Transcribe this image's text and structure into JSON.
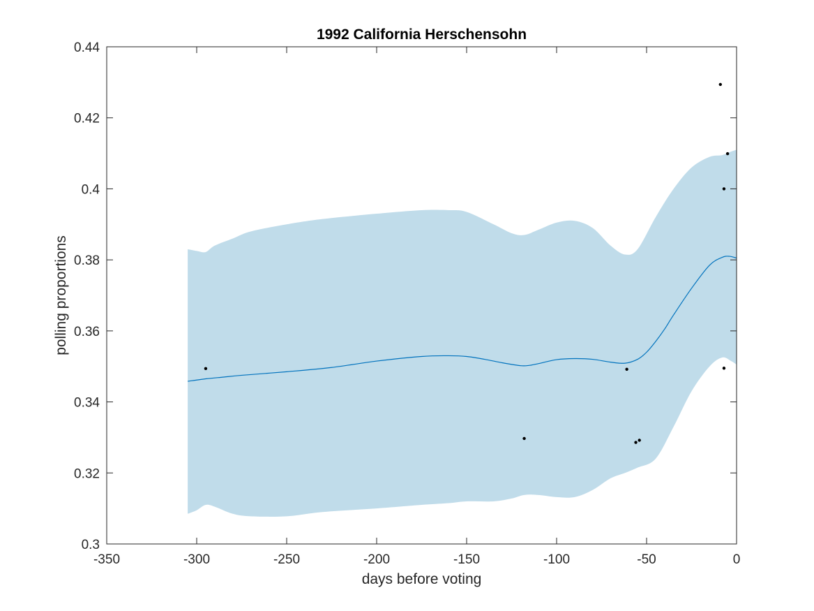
{
  "chart_data": {
    "type": "line",
    "title": "1992 California Herschensohn",
    "xlabel": "days before voting",
    "ylabel": "polling proportions",
    "xlim": [
      -350,
      0
    ],
    "ylim": [
      0.3,
      0.44
    ],
    "x_ticks": [
      -350,
      -300,
      -250,
      -200,
      -150,
      -100,
      -50,
      0
    ],
    "x_tick_labels": [
      "-350",
      "-300",
      "-250",
      "-200",
      "-150",
      "-100",
      "-50",
      "0"
    ],
    "y_ticks": [
      0.3,
      0.32,
      0.34,
      0.36,
      0.38,
      0.4,
      0.42,
      0.44
    ],
    "y_tick_labels": [
      "0.3",
      "0.32",
      "0.34",
      "0.36",
      "0.38",
      "0.4",
      "0.42",
      "0.44"
    ],
    "grid": false,
    "colors": {
      "band": "#c0dcea",
      "line": "#0072bd",
      "points": "#000000",
      "axes": "#262626"
    },
    "series": [
      {
        "kind": "band",
        "x": [
          -305,
          -300,
          -295,
          -290,
          -280,
          -270,
          -250,
          -230,
          -200,
          -175,
          -160,
          -150,
          -135,
          -125,
          -118,
          -110,
          -100,
          -90,
          -80,
          -70,
          -62,
          -55,
          -45,
          -35,
          -25,
          -15,
          -8,
          -3,
          0
        ],
        "upper": [
          0.383,
          0.3825,
          0.3822,
          0.384,
          0.386,
          0.388,
          0.39,
          0.3915,
          0.393,
          0.394,
          0.394,
          0.3935,
          0.39,
          0.3875,
          0.387,
          0.3885,
          0.3905,
          0.391,
          0.389,
          0.384,
          0.3815,
          0.383,
          0.392,
          0.4,
          0.406,
          0.409,
          0.4095,
          0.4105,
          0.411
        ],
        "lower": [
          0.3085,
          0.3095,
          0.311,
          0.3105,
          0.3085,
          0.3078,
          0.3078,
          0.309,
          0.31,
          0.311,
          0.3115,
          0.312,
          0.312,
          0.3128,
          0.3138,
          0.3138,
          0.3132,
          0.3132,
          0.3152,
          0.3185,
          0.32,
          0.3215,
          0.324,
          0.333,
          0.343,
          0.35,
          0.3525,
          0.3515,
          0.3505
        ]
      },
      {
        "kind": "line",
        "x": [
          -305,
          -295,
          -285,
          -275,
          -250,
          -225,
          -200,
          -175,
          -160,
          -150,
          -140,
          -130,
          -120,
          -115,
          -110,
          -100,
          -90,
          -80,
          -70,
          -62,
          -55,
          -50,
          -45,
          -40,
          -35,
          -25,
          -15,
          -8,
          -4,
          0
        ],
        "y": [
          0.3458,
          0.3465,
          0.347,
          0.3475,
          0.3485,
          0.3497,
          0.3515,
          0.3528,
          0.353,
          0.3528,
          0.352,
          0.351,
          0.3502,
          0.3503,
          0.3508,
          0.3519,
          0.3522,
          0.352,
          0.3512,
          0.3509,
          0.352,
          0.354,
          0.357,
          0.3605,
          0.3645,
          0.372,
          0.3785,
          0.3807,
          0.381,
          0.3805
        ]
      },
      {
        "kind": "scatter",
        "x": [
          -295,
          -118,
          -61,
          -56,
          -54,
          -9,
          -7,
          -7,
          -5
        ],
        "y": [
          0.3494,
          0.3297,
          0.3492,
          0.3286,
          0.3292,
          0.4294,
          0.4,
          0.3495,
          0.4099
        ]
      }
    ]
  }
}
